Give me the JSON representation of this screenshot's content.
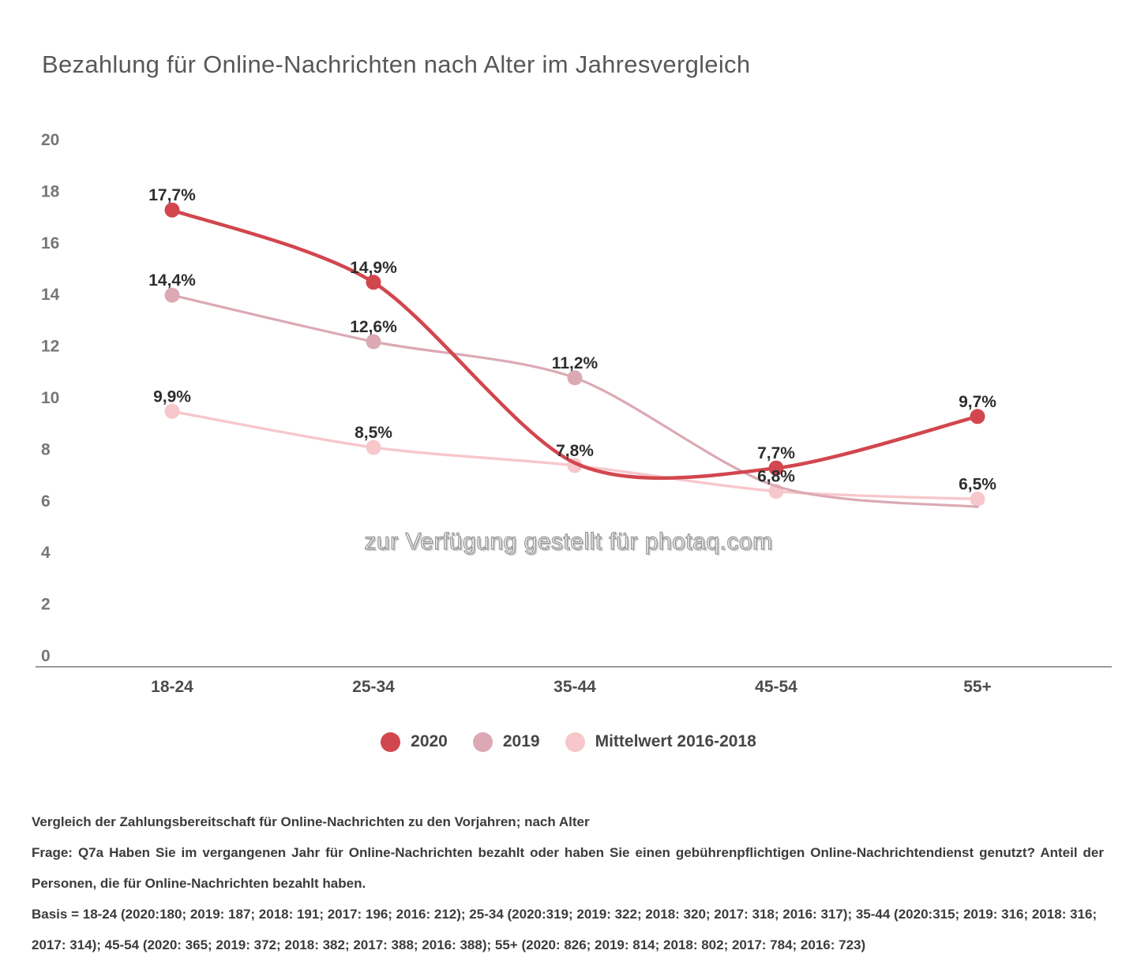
{
  "title": "Bezahlung für Online-Nachrichten nach Alter im Jahresvergleich",
  "watermark": "zur Verfügung gestellt für photaq.com",
  "legend": [
    {
      "label": "2020",
      "color": "#d2464e"
    },
    {
      "label": "2019",
      "color": "#dba9b4"
    },
    {
      "label": "Mittelwert 2016-2018",
      "color": "#f7c7cb"
    }
  ],
  "chart_data": {
    "type": "line",
    "categories": [
      "18-24",
      "25-34",
      "35-44",
      "45-54",
      "55+"
    ],
    "ylim": [
      0,
      20
    ],
    "ytick_step": 2,
    "grid": false,
    "legend_position": "bottom",
    "series": [
      {
        "name": "2020",
        "color": "#d2464e",
        "line_width": 4.5,
        "values": [
          17.7,
          14.9,
          7.9,
          7.7,
          9.7
        ],
        "point_labels": [
          "17,7%",
          "14,9%",
          null,
          "7,7%",
          "9,7%"
        ]
      },
      {
        "name": "2019",
        "color": "#dba9b4",
        "line_width": 3.2,
        "values": [
          14.4,
          12.6,
          11.2,
          7.0,
          6.2
        ],
        "point_labels": [
          "14,4%",
          "12,6%",
          "11,2%",
          null,
          null
        ]
      },
      {
        "name": "Mittelwert 2016-2018",
        "color": "#f7c7cb",
        "line_width": 3.4,
        "values": [
          9.9,
          8.5,
          7.8,
          6.8,
          6.5
        ],
        "point_labels": [
          "9,9%",
          "8,5%",
          "7,8%",
          "6,8%",
          "6,5%"
        ]
      }
    ]
  },
  "footer": {
    "line1": "Vergleich der Zahlungsbereitschaft für Online-Nachrichten zu den Vorjahren; nach Alter",
    "line2": "Frage: Q7a Haben Sie im vergangenen Jahr für Online-Nachrichten bezahlt oder haben Sie einen gebührenpflichtigen Online-Nachrichtendienst genutzt? Anteil der Personen, die für Online-Nachrichten bezahlt haben.",
    "line3": "Basis = 18-24 (2020:180; 2019: 187; 2018: 191; 2017: 196; 2016: 212); 25-34 (2020:319; 2019: 322; 2018: 320; 2017: 318; 2016: 317); 35-44 (2020:315; 2019: 316; 2018: 316; 2017: 314); 45-54 (2020: 365; 2019: 372; 2018: 382; 2017: 388; 2016: 388); 55+ (2020: 826; 2019: 814; 2018: 802; 2017: 784; 2016: 723)"
  }
}
